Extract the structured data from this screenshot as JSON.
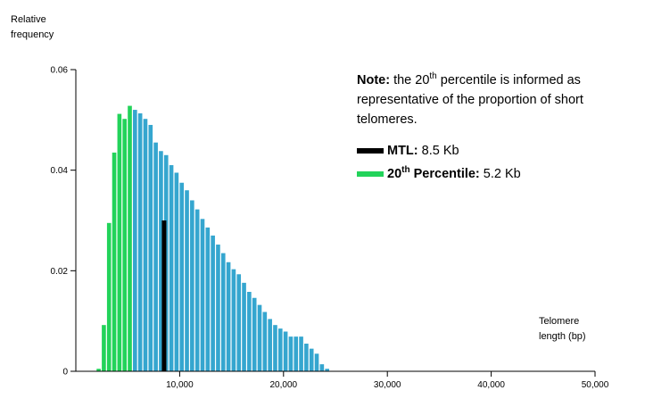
{
  "chart_data": {
    "type": "bar",
    "ylabel_line1": "Relative",
    "ylabel_line2": "frequency",
    "xlabel_line1": "Telomere",
    "xlabel_line2": "length (bp)",
    "xlim": [
      0,
      50000
    ],
    "ylim": [
      0,
      0.06
    ],
    "x_ticks": [
      10000,
      20000,
      30000,
      40000,
      50000
    ],
    "x_tick_labels": [
      "10,000",
      "20,000",
      "30,000",
      "40,000",
      "50,000"
    ],
    "y_ticks": [
      0,
      0.02,
      0.04,
      0.06
    ],
    "y_tick_labels": [
      "0",
      "0.02",
      "0.04",
      "0.06"
    ],
    "bin_width": 500,
    "bins": [
      {
        "x": 2000,
        "value": 0.0005,
        "group": "20th"
      },
      {
        "x": 2500,
        "value": 0.0092,
        "group": "20th"
      },
      {
        "x": 3000,
        "value": 0.0295,
        "group": "20th"
      },
      {
        "x": 3500,
        "value": 0.0435,
        "group": "20th"
      },
      {
        "x": 4000,
        "value": 0.0512,
        "group": "20th"
      },
      {
        "x": 4500,
        "value": 0.0502,
        "group": "20th"
      },
      {
        "x": 5000,
        "value": 0.0528,
        "group": "20th"
      },
      {
        "x": 5500,
        "value": 0.052,
        "group": "rest"
      },
      {
        "x": 6000,
        "value": 0.0513,
        "group": "rest"
      },
      {
        "x": 6500,
        "value": 0.0502,
        "group": "rest"
      },
      {
        "x": 7000,
        "value": 0.049,
        "group": "rest"
      },
      {
        "x": 7500,
        "value": 0.0455,
        "group": "rest"
      },
      {
        "x": 8000,
        "value": 0.0438,
        "group": "rest"
      },
      {
        "x": 8500,
        "value": 0.043,
        "group": "rest"
      },
      {
        "x": 9000,
        "value": 0.041,
        "group": "rest"
      },
      {
        "x": 9500,
        "value": 0.0395,
        "group": "rest"
      },
      {
        "x": 10000,
        "value": 0.0375,
        "group": "rest"
      },
      {
        "x": 10500,
        "value": 0.036,
        "group": "rest"
      },
      {
        "x": 11000,
        "value": 0.034,
        "group": "rest"
      },
      {
        "x": 11500,
        "value": 0.0322,
        "group": "rest"
      },
      {
        "x": 12000,
        "value": 0.0303,
        "group": "rest"
      },
      {
        "x": 12500,
        "value": 0.0286,
        "group": "rest"
      },
      {
        "x": 13000,
        "value": 0.027,
        "group": "rest"
      },
      {
        "x": 13500,
        "value": 0.0252,
        "group": "rest"
      },
      {
        "x": 14000,
        "value": 0.0235,
        "group": "rest"
      },
      {
        "x": 14500,
        "value": 0.0217,
        "group": "rest"
      },
      {
        "x": 15000,
        "value": 0.0203,
        "group": "rest"
      },
      {
        "x": 15500,
        "value": 0.0193,
        "group": "rest"
      },
      {
        "x": 16000,
        "value": 0.0176,
        "group": "rest"
      },
      {
        "x": 16500,
        "value": 0.0158,
        "group": "rest"
      },
      {
        "x": 17000,
        "value": 0.0146,
        "group": "rest"
      },
      {
        "x": 17500,
        "value": 0.0132,
        "group": "rest"
      },
      {
        "x": 18000,
        "value": 0.0118,
        "group": "rest"
      },
      {
        "x": 18500,
        "value": 0.0104,
        "group": "rest"
      },
      {
        "x": 19000,
        "value": 0.0092,
        "group": "rest"
      },
      {
        "x": 19500,
        "value": 0.0085,
        "group": "rest"
      },
      {
        "x": 20000,
        "value": 0.0079,
        "group": "rest"
      },
      {
        "x": 20500,
        "value": 0.0069,
        "group": "rest"
      },
      {
        "x": 21000,
        "value": 0.0069,
        "group": "rest"
      },
      {
        "x": 21500,
        "value": 0.0069,
        "group": "rest"
      },
      {
        "x": 22000,
        "value": 0.0055,
        "group": "rest"
      },
      {
        "x": 22500,
        "value": 0.0045,
        "group": "rest"
      },
      {
        "x": 23000,
        "value": 0.0035,
        "group": "rest"
      },
      {
        "x": 23500,
        "value": 0.0014,
        "group": "rest"
      },
      {
        "x": 24000,
        "value": 0.0005,
        "group": "rest"
      }
    ],
    "mtl_marker": {
      "x": 8500,
      "value": 0.03
    },
    "colors": {
      "20th": "#22d35a",
      "rest": "#35a6cf",
      "mtl": "#000000",
      "axis": "#000000"
    },
    "annotation": {
      "note_bold": "Note:",
      "note_pre": " the 20",
      "note_sup": "th",
      "note_post": " percentile is informed as representative of the proportion of short telomeres."
    },
    "legend": [
      {
        "key": "mtl",
        "label_bold": "MTL:",
        "label_sup": "",
        "label_bold2": "",
        "label_rest": " 8.5 Kb"
      },
      {
        "key": "20th",
        "label_bold": "20",
        "label_sup": "th",
        "label_bold2": " Percentile:",
        "label_rest": " 5.2 Kb"
      }
    ]
  }
}
